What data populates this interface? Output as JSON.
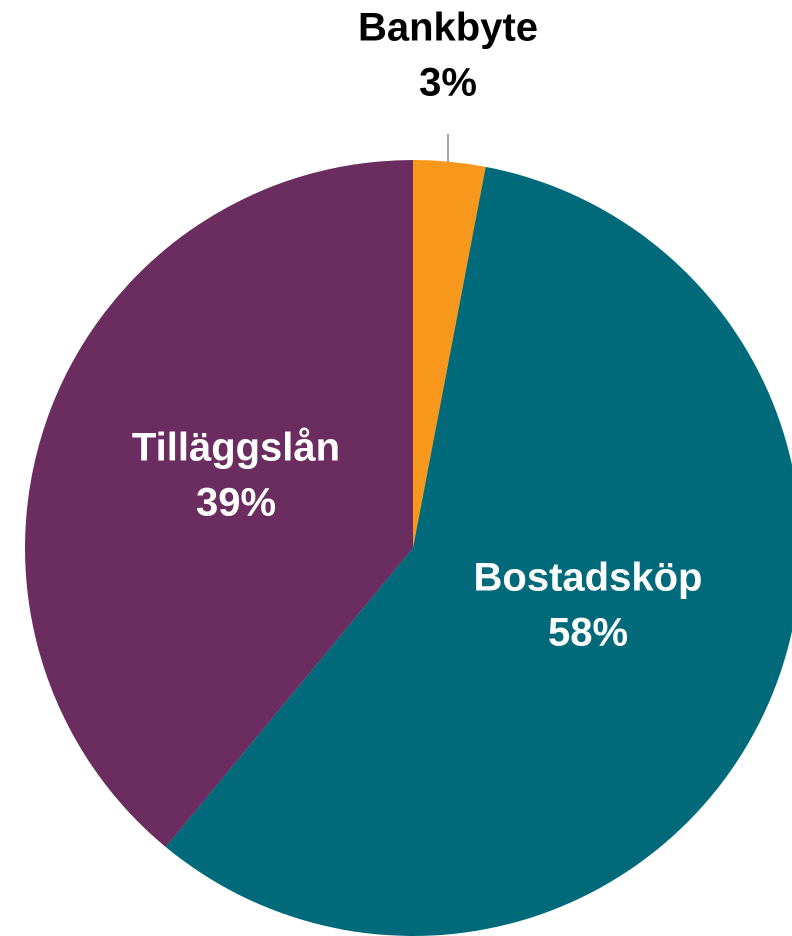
{
  "chart_data": {
    "type": "pie",
    "categories": [
      "Bankbyte",
      "Bostadsköp",
      "Tilläggslån"
    ],
    "values": [
      3,
      58,
      39
    ],
    "value_labels": [
      "3%",
      "58%",
      "39%"
    ],
    "colors": [
      "#f7981d",
      "#006a7a",
      "#6b2c5f"
    ]
  }
}
